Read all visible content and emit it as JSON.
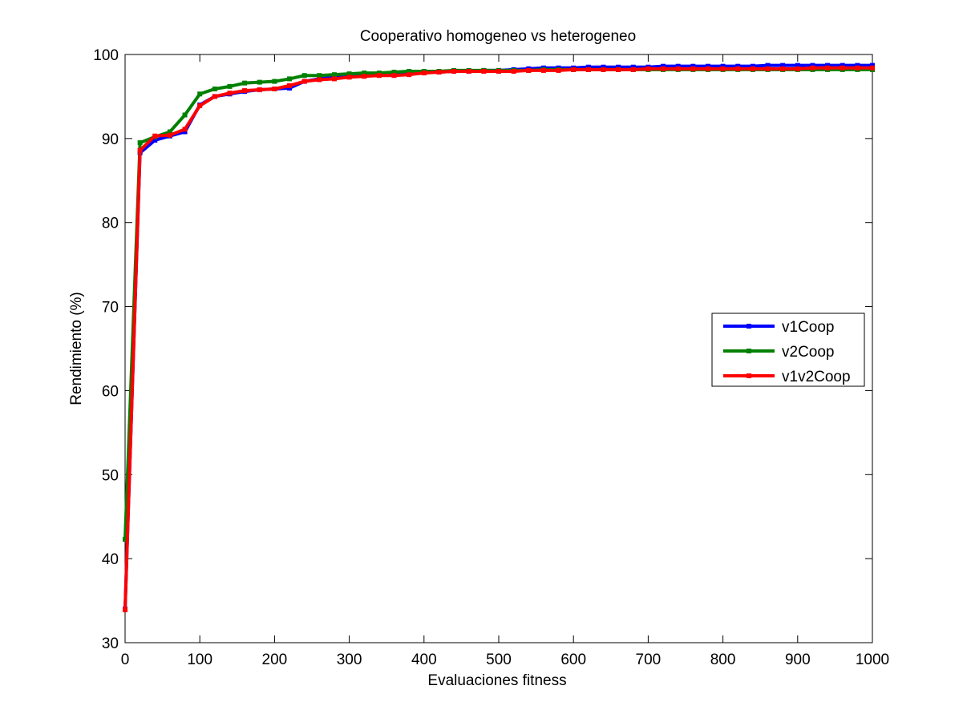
{
  "chart_data": {
    "type": "line",
    "title": "Cooperativo homogeneo vs heterogeneo",
    "xlabel": "Evaluaciones fitness",
    "ylabel": "Rendimiento (%)",
    "xlim": [
      0,
      1000
    ],
    "ylim": [
      30,
      100
    ],
    "xticks": [
      0,
      100,
      200,
      300,
      400,
      500,
      600,
      700,
      800,
      900,
      1000
    ],
    "yticks": [
      30,
      40,
      50,
      60,
      70,
      80,
      90,
      100
    ],
    "xtick_labels": [
      "0",
      "100",
      "200",
      "300",
      "400",
      "500",
      "600",
      "700",
      "800",
      "900",
      "1000"
    ],
    "ytick_labels": [
      "30",
      "40",
      "50",
      "60",
      "70",
      "80",
      "90",
      "100"
    ],
    "grid": false,
    "legend_position": "right",
    "x": [
      0,
      20,
      40,
      60,
      80,
      100,
      120,
      140,
      160,
      180,
      200,
      220,
      240,
      260,
      280,
      300,
      320,
      340,
      360,
      380,
      400,
      420,
      440,
      460,
      480,
      500,
      520,
      540,
      560,
      580,
      600,
      620,
      640,
      660,
      680,
      700,
      720,
      740,
      760,
      780,
      800,
      820,
      840,
      860,
      880,
      900,
      920,
      940,
      960,
      980,
      1000
    ],
    "series": [
      {
        "name": "v1Coop",
        "color": "#0000ff",
        "values": [
          34.0,
          88.3,
          89.8,
          90.3,
          90.8,
          94.0,
          95.0,
          95.3,
          95.6,
          95.8,
          95.9,
          96.0,
          96.8,
          97.1,
          97.3,
          97.5,
          97.6,
          97.6,
          97.7,
          97.8,
          97.9,
          97.9,
          98.0,
          98.0,
          98.1,
          98.1,
          98.2,
          98.3,
          98.4,
          98.4,
          98.4,
          98.5,
          98.5,
          98.5,
          98.5,
          98.5,
          98.6,
          98.6,
          98.6,
          98.6,
          98.6,
          98.6,
          98.6,
          98.7,
          98.7,
          98.7,
          98.7,
          98.7,
          98.7,
          98.7,
          98.7
        ]
      },
      {
        "name": "v2Coop",
        "color": "#008000",
        "values": [
          42.3,
          89.5,
          90.2,
          90.8,
          92.8,
          95.3,
          95.9,
          96.2,
          96.6,
          96.7,
          96.8,
          97.1,
          97.5,
          97.5,
          97.6,
          97.7,
          97.8,
          97.8,
          97.9,
          98.0,
          98.0,
          98.0,
          98.1,
          98.1,
          98.1,
          98.1,
          98.1,
          98.1,
          98.2,
          98.2,
          98.2,
          98.2,
          98.2,
          98.2,
          98.2,
          98.2,
          98.2,
          98.2,
          98.2,
          98.2,
          98.2,
          98.2,
          98.2,
          98.2,
          98.2,
          98.2,
          98.2,
          98.2,
          98.2,
          98.2,
          98.2
        ]
      },
      {
        "name": "v1v2Coop",
        "color": "#ff0000",
        "values": [
          33.9,
          88.6,
          90.3,
          90.4,
          91.1,
          93.9,
          95.0,
          95.4,
          95.7,
          95.8,
          95.9,
          96.3,
          96.8,
          97.0,
          97.1,
          97.3,
          97.4,
          97.5,
          97.5,
          97.6,
          97.8,
          97.9,
          98.0,
          98.0,
          98.0,
          98.0,
          98.0,
          98.1,
          98.1,
          98.1,
          98.2,
          98.2,
          98.2,
          98.2,
          98.2,
          98.3,
          98.3,
          98.3,
          98.3,
          98.3,
          98.3,
          98.3,
          98.3,
          98.3,
          98.3,
          98.3,
          98.4,
          98.4,
          98.4,
          98.4,
          98.4
        ]
      }
    ]
  }
}
